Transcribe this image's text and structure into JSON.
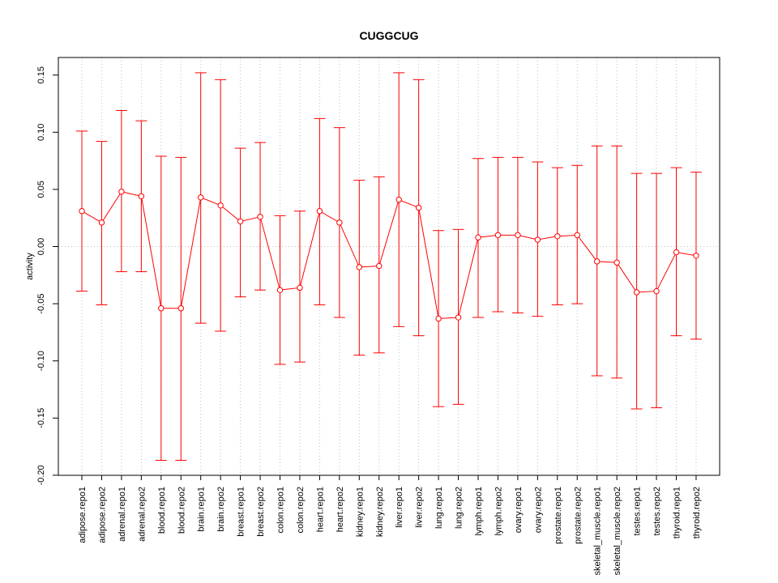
{
  "chart_data": {
    "type": "line",
    "title": "CUGGCUG",
    "xlabel": "",
    "ylabel": "activity",
    "ylim": [
      -0.2,
      0.16
    ],
    "y_ticks": [
      "-0.20",
      "-0.15",
      "-0.10",
      "-0.05",
      "0.00",
      "0.05",
      "0.10",
      "0.15"
    ],
    "y_tick_values": [
      -0.2,
      -0.15,
      -0.1,
      -0.05,
      0.0,
      0.05,
      0.1,
      0.15
    ],
    "grid": true,
    "color": "#ff0000",
    "grid_color": "#bfbfbf",
    "categories": [
      "adipose.repo1",
      "adipose.repo2",
      "adrenal.repo1",
      "adrenal.repo2",
      "blood.repo1",
      "blood.repo2",
      "brain.repo1",
      "brain.repo2",
      "breast.repo1",
      "breast.repo2",
      "colon.repo1",
      "colon.repo2",
      "heart.repo1",
      "heart.repo2",
      "kidney.repo1",
      "kidney.repo2",
      "liver.repo1",
      "liver.repo2",
      "lung.repo1",
      "lung.repo2",
      "lymph.repo1",
      "lymph.repo2",
      "ovary.repo1",
      "ovary.repo2",
      "prostate.repo1",
      "prostate.repo2",
      "skeletal_muscle.repo1",
      "skeletal_muscle.repo2",
      "testes.repo1",
      "testes.repo2",
      "thyroid.repo1",
      "thyroid.repo2"
    ],
    "values": [
      0.031,
      0.021,
      0.048,
      0.044,
      -0.054,
      -0.054,
      0.043,
      0.036,
      0.022,
      0.026,
      -0.038,
      -0.036,
      0.031,
      0.021,
      -0.018,
      -0.017,
      0.041,
      0.034,
      -0.063,
      -0.062,
      0.008,
      0.01,
      0.01,
      0.006,
      0.009,
      0.01,
      -0.013,
      -0.014,
      -0.04,
      -0.039,
      -0.005,
      -0.008
    ],
    "upper": [
      0.101,
      0.092,
      0.119,
      0.11,
      0.079,
      0.078,
      0.152,
      0.146,
      0.086,
      0.091,
      0.027,
      0.031,
      0.112,
      0.104,
      0.058,
      0.061,
      0.152,
      0.146,
      0.014,
      0.015,
      0.077,
      0.078,
      0.078,
      0.074,
      0.069,
      0.071,
      0.088,
      0.088,
      0.064,
      0.064,
      0.069,
      0.065
    ],
    "lower": [
      -0.039,
      -0.051,
      -0.022,
      -0.022,
      -0.187,
      -0.187,
      -0.067,
      -0.074,
      -0.044,
      -0.038,
      -0.103,
      -0.101,
      -0.051,
      -0.062,
      -0.095,
      -0.093,
      -0.07,
      -0.078,
      -0.14,
      -0.138,
      -0.062,
      -0.057,
      -0.058,
      -0.061,
      -0.051,
      -0.05,
      -0.113,
      -0.115,
      -0.142,
      -0.141,
      -0.078,
      -0.081
    ]
  }
}
